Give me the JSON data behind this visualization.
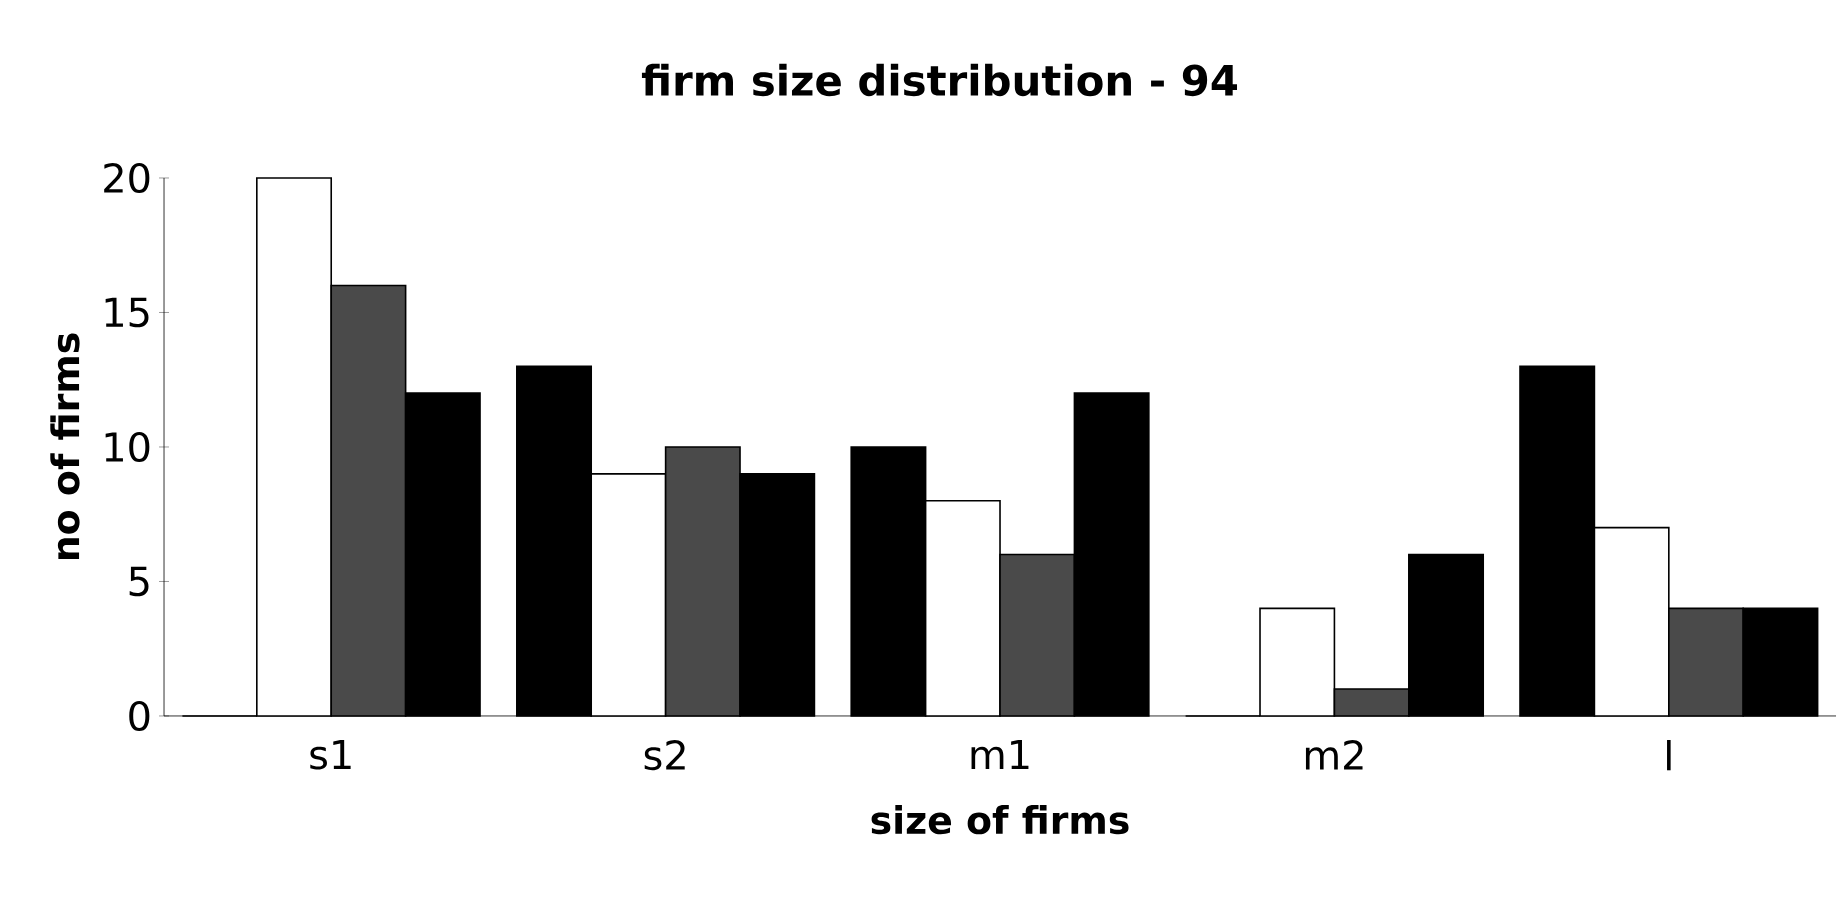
{
  "chart_data": {
    "type": "bar",
    "title": "firm size distribution - 94",
    "xlabel": "size of firms",
    "ylabel": "no of firms",
    "categories": [
      "s1",
      "s2",
      "m1",
      "m2",
      "l"
    ],
    "series": [
      {
        "color": "#000000",
        "values": [
          0,
          13,
          10,
          0,
          13
        ]
      },
      {
        "color": "#ffffff",
        "values": [
          20,
          9,
          8,
          4,
          7
        ]
      },
      {
        "color": "#4a4a4a",
        "values": [
          16,
          10,
          6,
          1,
          4
        ]
      },
      {
        "color": "#000000",
        "values": [
          12,
          9,
          12,
          6,
          4
        ]
      }
    ],
    "ylim": [
      0,
      20
    ],
    "yticks": [
      0,
      5,
      10,
      15,
      20
    ]
  }
}
